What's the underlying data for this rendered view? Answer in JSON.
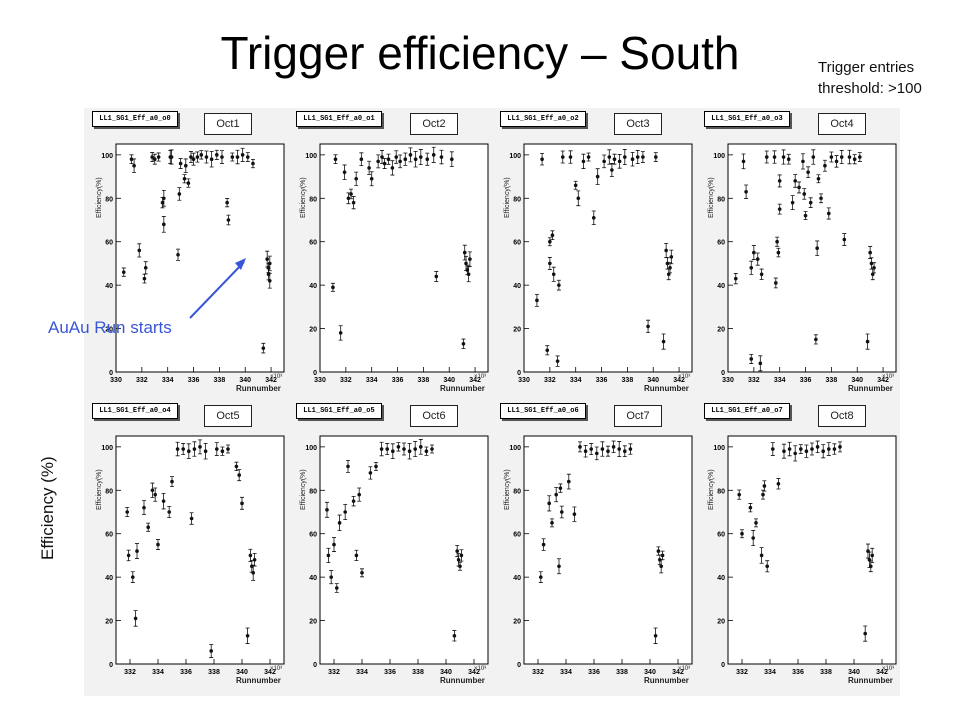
{
  "title": "Trigger efficiency – South",
  "note": {
    "line1": "Trigger entries",
    "line2": "threshold: >100"
  },
  "ylabel_global": "Efficiency (%)",
  "annotation": "AuAu Run starts",
  "colors": {
    "annotation": "#3a56d8",
    "marker": "#111111",
    "panel_bg": "#f2f2f2"
  },
  "chart_data": [
    {
      "type": "scatter",
      "hist_name": "LL1_SG1_Eff_a0_o0",
      "oct_label": "Oct1",
      "ylabel": "Efficiency(%)",
      "xlabel": "Runnumber",
      "x_scale_label": "×10³",
      "xlim": [
        330,
        343
      ],
      "ylim": [
        0,
        105
      ],
      "x_ticks": [
        "330",
        "332",
        "334",
        "336",
        "338",
        "340",
        "342"
      ],
      "y_ticks": [
        "0",
        "20",
        "40",
        "60",
        "80",
        "100"
      ],
      "points": [
        [
          330.6,
          46
        ],
        [
          331.2,
          98
        ],
        [
          331.4,
          95
        ],
        [
          331.8,
          56
        ],
        [
          332.2,
          43
        ],
        [
          332.3,
          48
        ],
        [
          332.8,
          99
        ],
        [
          333.0,
          98
        ],
        [
          333.3,
          99
        ],
        [
          333.6,
          78
        ],
        [
          333.7,
          80
        ],
        [
          333.7,
          68
        ],
        [
          334.2,
          99
        ],
        [
          334.3,
          99
        ],
        [
          334.8,
          54
        ],
        [
          334.9,
          82
        ],
        [
          335.0,
          96
        ],
        [
          335.3,
          89
        ],
        [
          335.4,
          95
        ],
        [
          335.6,
          87
        ],
        [
          335.8,
          99
        ],
        [
          336.0,
          98
        ],
        [
          336.3,
          99
        ],
        [
          336.6,
          100
        ],
        [
          337.0,
          99
        ],
        [
          337.4,
          98
        ],
        [
          337.8,
          100
        ],
        [
          338.2,
          99
        ],
        [
          338.6,
          78
        ],
        [
          338.7,
          70
        ],
        [
          339.0,
          99
        ],
        [
          339.4,
          99
        ],
        [
          339.8,
          100
        ],
        [
          340.2,
          99
        ],
        [
          340.6,
          96
        ],
        [
          341.4,
          11
        ],
        [
          341.7,
          52
        ],
        [
          341.8,
          48
        ],
        [
          341.8,
          45
        ],
        [
          341.9,
          50
        ],
        [
          341.9,
          42
        ]
      ]
    },
    {
      "type": "scatter",
      "hist_name": "LL1_SG1_Eff_a0_o1",
      "oct_label": "Oct2",
      "ylabel": "Efficiency(%)",
      "xlabel": "Runnumber",
      "x_scale_label": "×10³",
      "xlim": [
        330,
        343
      ],
      "ylim": [
        0,
        105
      ],
      "x_ticks": [
        "330",
        "332",
        "334",
        "336",
        "338",
        "340",
        "342"
      ],
      "y_ticks": [
        "0",
        "20",
        "40",
        "60",
        "80",
        "100"
      ],
      "points": [
        [
          331.0,
          39
        ],
        [
          331.2,
          98
        ],
        [
          331.6,
          18
        ],
        [
          331.9,
          92
        ],
        [
          332.2,
          80
        ],
        [
          332.4,
          82
        ],
        [
          332.6,
          78
        ],
        [
          332.8,
          89
        ],
        [
          333.2,
          98
        ],
        [
          333.8,
          94
        ],
        [
          334.0,
          89
        ],
        [
          334.5,
          97
        ],
        [
          334.8,
          99
        ],
        [
          335.0,
          96
        ],
        [
          335.3,
          98
        ],
        [
          335.6,
          94
        ],
        [
          335.9,
          99
        ],
        [
          336.2,
          97
        ],
        [
          336.6,
          98
        ],
        [
          337.0,
          100
        ],
        [
          337.4,
          98
        ],
        [
          337.8,
          99
        ],
        [
          338.3,
          98
        ],
        [
          338.8,
          100
        ],
        [
          339.0,
          44
        ],
        [
          339.4,
          99
        ],
        [
          340.2,
          98
        ],
        [
          341.1,
          13
        ],
        [
          341.2,
          55
        ],
        [
          341.3,
          50
        ],
        [
          341.4,
          47
        ],
        [
          341.5,
          45
        ],
        [
          341.6,
          52
        ]
      ]
    },
    {
      "type": "scatter",
      "hist_name": "LL1_SG1_Eff_a0_o2",
      "oct_label": "Oct3",
      "ylabel": "Efficiency(%)",
      "xlabel": "Runnumber",
      "x_scale_label": "×10³",
      "xlim": [
        330,
        343
      ],
      "ylim": [
        0,
        105
      ],
      "x_ticks": [
        "330",
        "332",
        "334",
        "336",
        "338",
        "340",
        "342"
      ],
      "y_ticks": [
        "0",
        "20",
        "40",
        "60",
        "80",
        "100"
      ],
      "points": [
        [
          331.0,
          33
        ],
        [
          331.4,
          98
        ],
        [
          331.8,
          10
        ],
        [
          332.0,
          50
        ],
        [
          332.0,
          60
        ],
        [
          332.2,
          63
        ],
        [
          332.3,
          45
        ],
        [
          332.6,
          5
        ],
        [
          332.7,
          40
        ],
        [
          333.0,
          99
        ],
        [
          333.6,
          99
        ],
        [
          334.0,
          86
        ],
        [
          334.2,
          80
        ],
        [
          334.6,
          97
        ],
        [
          335.0,
          99
        ],
        [
          335.4,
          71
        ],
        [
          335.7,
          90
        ],
        [
          336.2,
          97
        ],
        [
          336.6,
          99
        ],
        [
          336.8,
          93
        ],
        [
          337.0,
          98
        ],
        [
          337.4,
          97
        ],
        [
          337.8,
          99
        ],
        [
          338.4,
          98
        ],
        [
          338.8,
          99
        ],
        [
          339.2,
          99
        ],
        [
          339.6,
          21
        ],
        [
          340.2,
          99
        ],
        [
          340.8,
          14
        ],
        [
          341.0,
          56
        ],
        [
          341.1,
          50
        ],
        [
          341.2,
          45
        ],
        [
          341.3,
          48
        ],
        [
          341.4,
          53
        ]
      ]
    },
    {
      "type": "scatter",
      "hist_name": "LL1_SG1_Eff_a0_o3",
      "oct_label": "Oct4",
      "ylabel": "Efficiency(%)",
      "xlabel": "Runnumber",
      "x_scale_label": "×10³",
      "xlim": [
        330,
        343
      ],
      "ylim": [
        0,
        105
      ],
      "x_ticks": [
        "330",
        "332",
        "334",
        "336",
        "338",
        "340",
        "342"
      ],
      "y_ticks": [
        "0",
        "20",
        "40",
        "60",
        "80",
        "100"
      ],
      "points": [
        [
          330.6,
          43
        ],
        [
          331.2,
          97
        ],
        [
          331.4,
          83
        ],
        [
          331.8,
          6
        ],
        [
          331.8,
          48
        ],
        [
          332.0,
          55
        ],
        [
          332.3,
          52
        ],
        [
          332.5,
          4
        ],
        [
          332.6,
          45
        ],
        [
          333.0,
          99
        ],
        [
          333.6,
          99
        ],
        [
          333.7,
          41
        ],
        [
          333.8,
          60
        ],
        [
          333.9,
          55
        ],
        [
          334.0,
          88
        ],
        [
          334.0,
          75
        ],
        [
          334.3,
          99
        ],
        [
          334.7,
          98
        ],
        [
          335.0,
          78
        ],
        [
          335.2,
          88
        ],
        [
          335.5,
          85
        ],
        [
          335.8,
          97
        ],
        [
          335.9,
          82
        ],
        [
          336.0,
          72
        ],
        [
          336.2,
          92
        ],
        [
          336.4,
          78
        ],
        [
          336.6,
          99
        ],
        [
          336.8,
          15
        ],
        [
          336.9,
          57
        ],
        [
          337.0,
          89
        ],
        [
          337.2,
          80
        ],
        [
          337.5,
          95
        ],
        [
          337.8,
          73
        ],
        [
          338.0,
          99
        ],
        [
          338.4,
          97
        ],
        [
          338.8,
          99
        ],
        [
          339.0,
          61
        ],
        [
          339.4,
          99
        ],
        [
          339.8,
          98
        ],
        [
          340.2,
          99
        ],
        [
          340.8,
          14
        ],
        [
          341.0,
          55
        ],
        [
          341.1,
          50
        ],
        [
          341.2,
          45
        ],
        [
          341.3,
          48
        ]
      ]
    },
    {
      "type": "scatter",
      "hist_name": "LL1_SG1_Eff_a0_o4",
      "oct_label": "Oct5",
      "ylabel": "Efficiency(%)",
      "xlabel": "Runnumber",
      "x_scale_label": "×10³",
      "xlim": [
        331,
        343
      ],
      "ylim": [
        0,
        105
      ],
      "x_ticks": [
        "332",
        "334",
        "336",
        "338",
        "340",
        "342"
      ],
      "y_ticks": [
        "0",
        "20",
        "40",
        "60",
        "80",
        "100"
      ],
      "points": [
        [
          331.8,
          70
        ],
        [
          331.9,
          50
        ],
        [
          332.2,
          40
        ],
        [
          332.4,
          21
        ],
        [
          332.5,
          52
        ],
        [
          333.0,
          72
        ],
        [
          333.3,
          63
        ],
        [
          333.6,
          80
        ],
        [
          333.8,
          78
        ],
        [
          334.0,
          55
        ],
        [
          334.4,
          75
        ],
        [
          334.8,
          70
        ],
        [
          335.0,
          84
        ],
        [
          335.4,
          99
        ],
        [
          335.8,
          99
        ],
        [
          336.2,
          98
        ],
        [
          336.4,
          67
        ],
        [
          336.6,
          99
        ],
        [
          337.0,
          100
        ],
        [
          337.4,
          98
        ],
        [
          337.8,
          6
        ],
        [
          338.2,
          99
        ],
        [
          338.6,
          98
        ],
        [
          339.0,
          99
        ],
        [
          339.6,
          91
        ],
        [
          339.8,
          87
        ],
        [
          340.0,
          74
        ],
        [
          340.4,
          13
        ],
        [
          340.6,
          50
        ],
        [
          340.7,
          45
        ],
        [
          340.8,
          42
        ],
        [
          340.9,
          48
        ]
      ]
    },
    {
      "type": "scatter",
      "hist_name": "LL1_SG1_Eff_a0_o5",
      "oct_label": "Oct6",
      "ylabel": "Efficiency(%)",
      "xlabel": "Runnumber",
      "x_scale_label": "×10³",
      "xlim": [
        331,
        343
      ],
      "ylim": [
        0,
        105
      ],
      "x_ticks": [
        "332",
        "334",
        "336",
        "338",
        "340",
        "342"
      ],
      "y_ticks": [
        "0",
        "20",
        "40",
        "60",
        "80",
        "100"
      ],
      "points": [
        [
          331.5,
          71
        ],
        [
          331.6,
          50
        ],
        [
          331.8,
          40
        ],
        [
          332.0,
          55
        ],
        [
          332.2,
          35
        ],
        [
          332.4,
          65
        ],
        [
          332.8,
          70
        ],
        [
          333.0,
          91
        ],
        [
          333.4,
          75
        ],
        [
          333.6,
          50
        ],
        [
          333.8,
          78
        ],
        [
          334.0,
          42
        ],
        [
          334.6,
          88
        ],
        [
          335.0,
          91
        ],
        [
          335.4,
          99
        ],
        [
          335.8,
          99
        ],
        [
          336.2,
          98
        ],
        [
          336.6,
          100
        ],
        [
          337.0,
          99
        ],
        [
          337.4,
          98
        ],
        [
          337.8,
          99
        ],
        [
          338.2,
          100
        ],
        [
          338.6,
          98
        ],
        [
          339.0,
          99
        ],
        [
          340.6,
          13
        ],
        [
          340.8,
          52
        ],
        [
          340.9,
          48
        ],
        [
          341.0,
          45
        ],
        [
          341.1,
          50
        ]
      ]
    },
    {
      "type": "scatter",
      "hist_name": "LL1_SG1_Eff_a0_o6",
      "oct_label": "Oct7",
      "ylabel": "Efficiency(%)",
      "xlabel": "Runnumber",
      "x_scale_label": "×10³",
      "xlim": [
        331,
        343
      ],
      "ylim": [
        0,
        105
      ],
      "x_ticks": [
        "332",
        "334",
        "336",
        "338",
        "340",
        "342"
      ],
      "y_ticks": [
        "0",
        "20",
        "40",
        "60",
        "80",
        "100"
      ],
      "points": [
        [
          332.2,
          40
        ],
        [
          332.4,
          55
        ],
        [
          332.8,
          74
        ],
        [
          333.0,
          65
        ],
        [
          333.3,
          78
        ],
        [
          333.5,
          45
        ],
        [
          333.6,
          81
        ],
        [
          333.7,
          70
        ],
        [
          334.2,
          84
        ],
        [
          334.6,
          69
        ],
        [
          335.0,
          100
        ],
        [
          335.4,
          98
        ],
        [
          335.8,
          99
        ],
        [
          336.2,
          97
        ],
        [
          336.6,
          99
        ],
        [
          337.0,
          98
        ],
        [
          337.4,
          100
        ],
        [
          337.8,
          99
        ],
        [
          338.2,
          98
        ],
        [
          338.6,
          99
        ],
        [
          340.4,
          13
        ],
        [
          340.6,
          52
        ],
        [
          340.7,
          48
        ],
        [
          340.8,
          45
        ],
        [
          340.9,
          50
        ]
      ]
    },
    {
      "type": "scatter",
      "hist_name": "LL1_SG1_Eff_a0_o7",
      "oct_label": "Oct8",
      "ylabel": "Efficiency(%)",
      "xlabel": "Runnumber",
      "x_scale_label": "×10³",
      "xlim": [
        331,
        343
      ],
      "ylim": [
        0,
        105
      ],
      "x_ticks": [
        "332",
        "334",
        "336",
        "338",
        "340",
        "342"
      ],
      "y_ticks": [
        "0",
        "20",
        "40",
        "60",
        "80",
        "100"
      ],
      "points": [
        [
          331.8,
          78
        ],
        [
          332.0,
          60
        ],
        [
          332.6,
          72
        ],
        [
          332.8,
          58
        ],
        [
          333.0,
          65
        ],
        [
          333.4,
          50
        ],
        [
          333.5,
          78
        ],
        [
          333.6,
          82
        ],
        [
          333.8,
          45
        ],
        [
          334.2,
          99
        ],
        [
          334.6,
          83
        ],
        [
          335.0,
          98
        ],
        [
          335.4,
          99
        ],
        [
          335.8,
          97
        ],
        [
          336.2,
          99
        ],
        [
          336.6,
          98
        ],
        [
          337.0,
          99
        ],
        [
          337.4,
          100
        ],
        [
          337.8,
          98
        ],
        [
          338.2,
          99
        ],
        [
          338.6,
          99
        ],
        [
          339.0,
          100
        ],
        [
          340.8,
          14
        ],
        [
          341.0,
          52
        ],
        [
          341.1,
          48
        ],
        [
          341.2,
          45
        ],
        [
          341.3,
          50
        ]
      ]
    }
  ]
}
